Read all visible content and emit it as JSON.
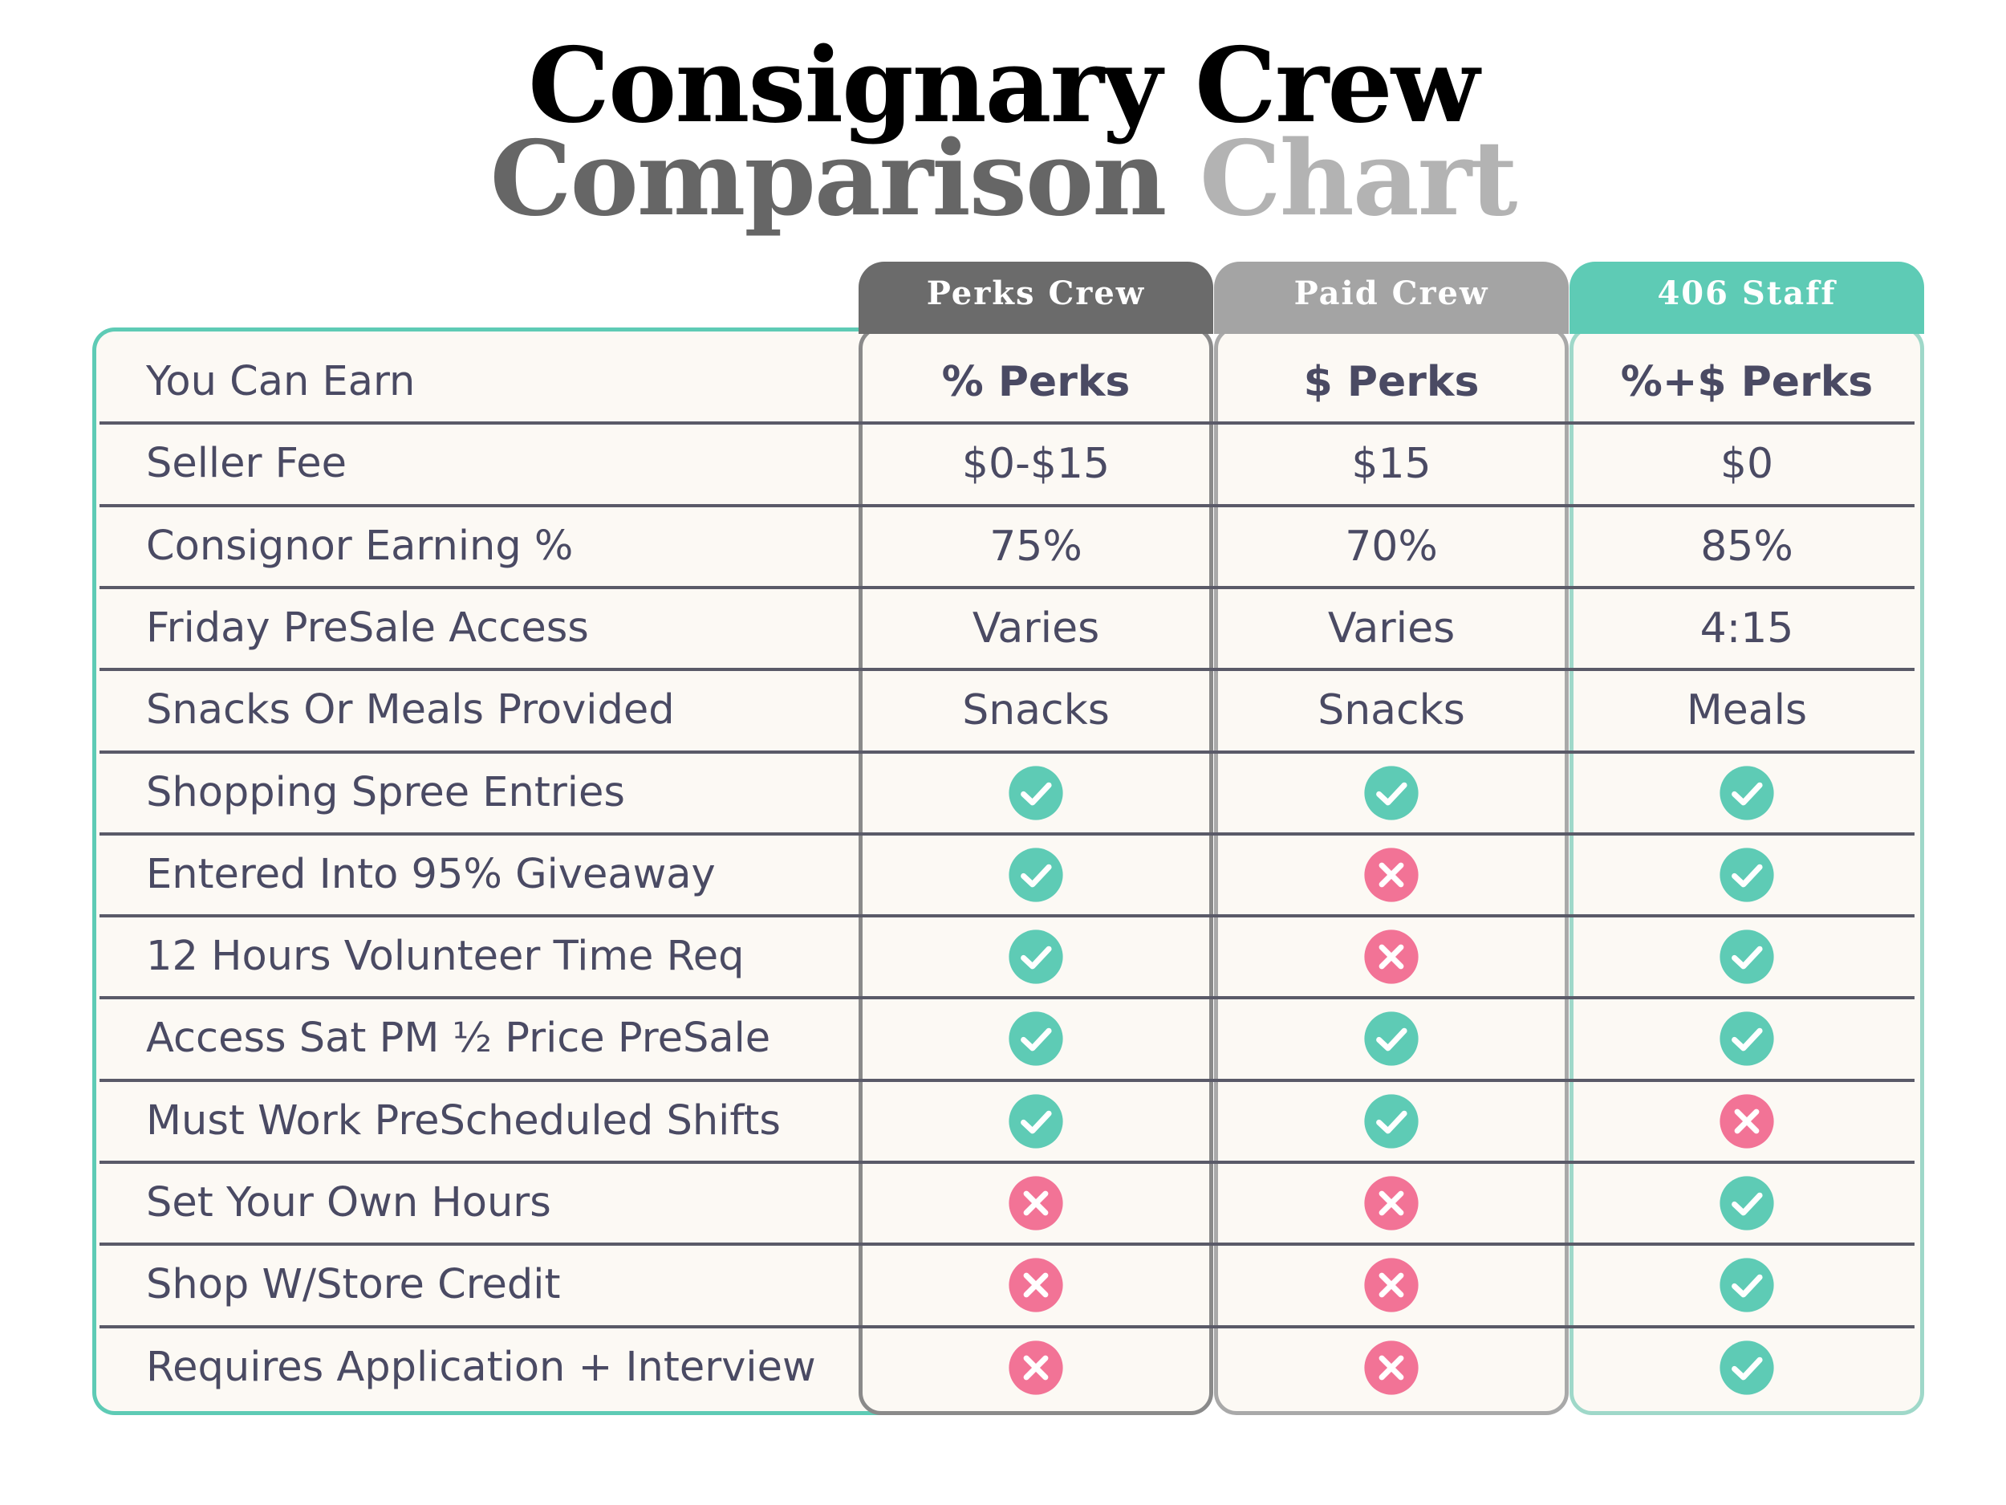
{
  "title": {
    "line1": "Consignary Crew",
    "line2a": "Comparison",
    "line2b": "Chart"
  },
  "colors": {
    "teal": "#5ecbb5",
    "pink": "#f27396",
    "text": "#4a4a63"
  },
  "columns": [
    "Perks Crew",
    "Paid Crew",
    "406 Staff"
  ],
  "rows": [
    {
      "label": "You Can Earn",
      "values": [
        "% Perks",
        "$ Perks",
        "%+$ Perks"
      ]
    },
    {
      "label": "Seller Fee",
      "values": [
        "$0-$15",
        "$15",
        "$0"
      ]
    },
    {
      "label": "Consignor Earning %",
      "values": [
        "75%",
        "70%",
        "85%"
      ]
    },
    {
      "label": "Friday PreSale Access",
      "values": [
        "Varies",
        "Varies",
        "4:15"
      ]
    },
    {
      "label": "Snacks Or Meals Provided",
      "values": [
        "Snacks",
        "Snacks",
        "Meals"
      ]
    },
    {
      "label": "Shopping Spree Entries",
      "values": [
        "check-icon",
        "check-icon",
        "check-icon"
      ]
    },
    {
      "label": "Entered Into 95% Giveaway",
      "values": [
        "check-icon",
        "x-icon",
        "check-icon"
      ]
    },
    {
      "label": "12 Hours Volunteer Time Req",
      "values": [
        "check-icon",
        "x-icon",
        "check-icon"
      ]
    },
    {
      "label": "Access Sat PM ½ Price PreSale",
      "values": [
        "check-icon",
        "check-icon",
        "check-icon"
      ]
    },
    {
      "label": "Must Work PreScheduled Shifts",
      "values": [
        "check-icon",
        "check-icon",
        "x-icon"
      ]
    },
    {
      "label": "Set Your Own Hours",
      "values": [
        "x-icon",
        "x-icon",
        "check-icon"
      ]
    },
    {
      "label": "Shop W/Store Credit",
      "values": [
        "x-icon",
        "x-icon",
        "check-icon"
      ]
    },
    {
      "label": "Requires Application + Interview",
      "values": [
        "x-icon",
        "x-icon",
        "check-icon"
      ]
    }
  ]
}
